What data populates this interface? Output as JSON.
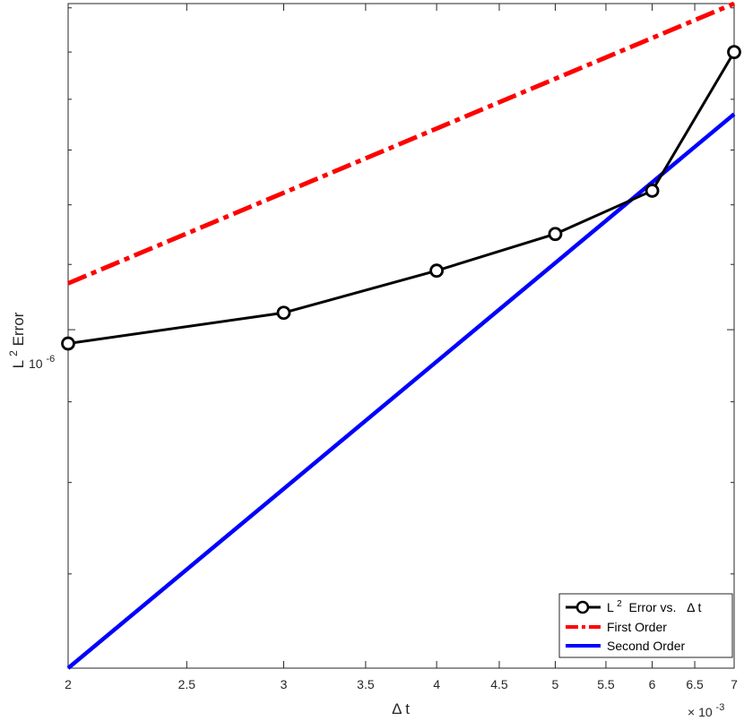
{
  "chart_data": {
    "type": "line",
    "xlabel": "Δ t",
    "ylabel_base": "L",
    "ylabel_sup": "2",
    "ylabel_rest": " Error",
    "x_scale": "log",
    "y_scale": "log",
    "xlim": [
      0.002,
      0.007
    ],
    "ylim": [
      6.1e-07,
      1.61e-06
    ],
    "x_exponent_base": "× 10",
    "x_exponent_sup": "-3",
    "x_ticks": [
      0.002,
      0.0025,
      0.003,
      0.0035,
      0.004,
      0.0045,
      0.005,
      0.0055,
      0.006,
      0.0065,
      0.007
    ],
    "x_tick_labels": [
      "2",
      "2.5",
      "3",
      "3.5",
      "4",
      "4.5",
      "5",
      "5.5",
      "6",
      "6.5",
      "7"
    ],
    "y_major_tick": 1e-06,
    "y_major_tick_label_base": "10",
    "y_major_tick_label_sup": "-6",
    "y_minor_ticks": [
      7e-07,
      8e-07,
      9e-07,
      1.1e-06,
      1.2e-06,
      1.3e-06,
      1.4e-06,
      1.5e-06,
      1.6e-06
    ],
    "grid": false,
    "legend_position": "bottom-right",
    "series": [
      {
        "name": "L² Error vs.   Δ t",
        "legend_base": "L",
        "legend_sup": "2",
        "legend_rest": " Error vs.   Δ t",
        "color": "#000000",
        "style": "solid-markers",
        "x": [
          0.002,
          0.003,
          0.004,
          0.005,
          0.006,
          0.007
        ],
        "y": [
          9.8e-07,
          1.025e-06,
          1.09e-06,
          1.15e-06,
          1.225e-06,
          1.5e-06
        ]
      },
      {
        "name": "First Order",
        "legend_label": "First Order",
        "color": "#ff0000",
        "style": "dash-dot",
        "x": [
          0.002,
          0.007
        ],
        "y": [
          1.07e-06,
          1.61e-06
        ]
      },
      {
        "name": "Second Order",
        "legend_label": "Second Order",
        "color": "#0000ff",
        "style": "solid",
        "x": [
          0.002,
          0.007
        ],
        "y": [
          6.1e-07,
          1.37e-06
        ]
      }
    ]
  }
}
